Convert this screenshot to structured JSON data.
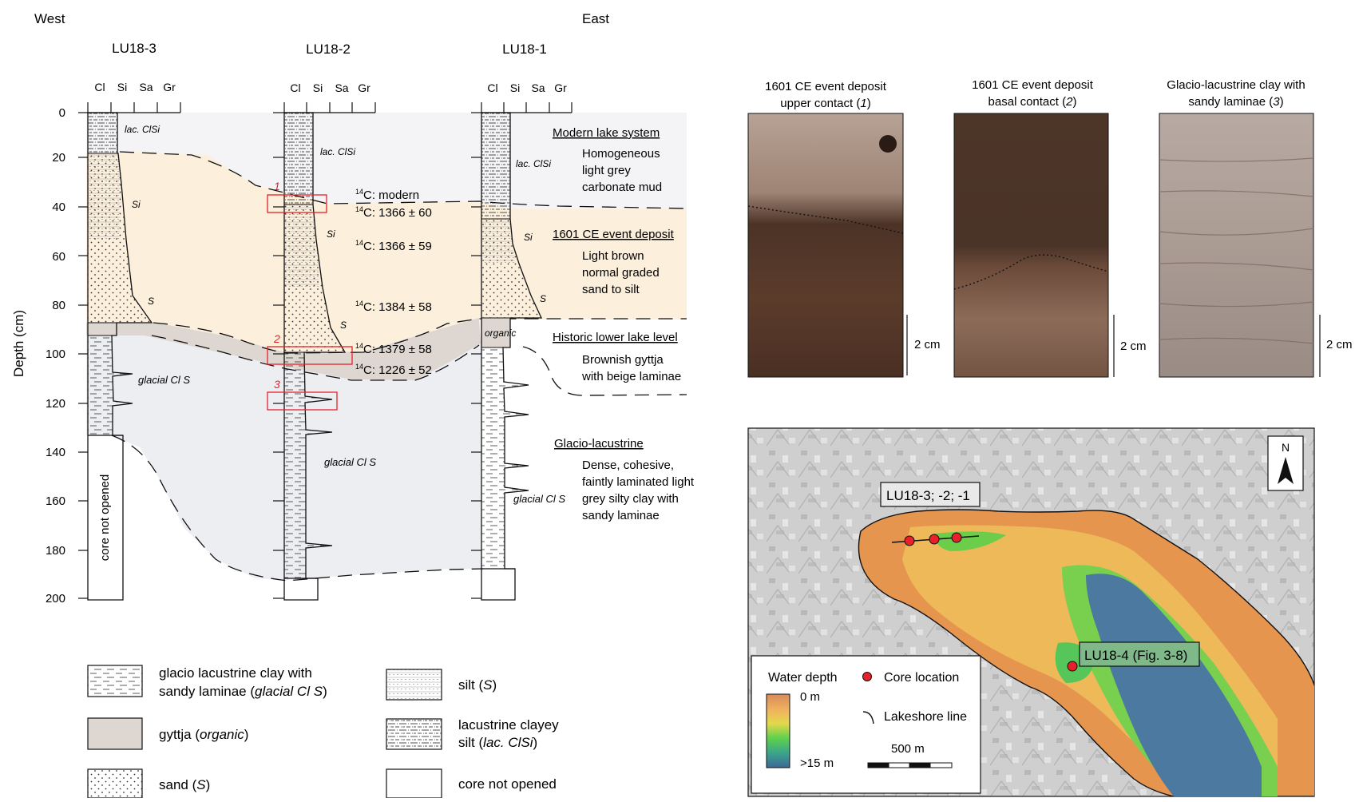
{
  "header": {
    "west": "West",
    "east": "East"
  },
  "cores": [
    "LU18-3",
    "LU18-2",
    "LU18-1"
  ],
  "grain_labels": [
    "Cl",
    "Si",
    "Sa",
    "Gr"
  ],
  "axis": {
    "label": "Depth (cm)",
    "ticks": [
      "0",
      "20",
      "40",
      "60",
      "80",
      "100",
      "120",
      "140",
      "160",
      "180",
      "200"
    ]
  },
  "core_labels": {
    "lu183_lacclsi": "lac. ClSi",
    "lu183_si": "Si",
    "lu183_s": "S",
    "lu183_glacial": "glacial Cl S",
    "lu183_notopened": "core not opened",
    "lu182_lacclsi": "lac. ClSi",
    "lu182_si": "Si",
    "lu182_s": "S",
    "lu182_glacial": "glacial Cl S",
    "lu181_lacclsi": "lac. ClSi",
    "lu181_si": "Si",
    "lu181_s": "S",
    "lu181_organic": "organic",
    "lu181_glacial": "glacial Cl S"
  },
  "markers": [
    "1",
    "2",
    "3"
  ],
  "c14": {
    "prefix": "14",
    "items": [
      "C: modern",
      "C: 1366 ± 60",
      "C: 1366 ± 59",
      "C: 1384 ± 58",
      "C: 1379 ± 58",
      "C: 1226 ± 52"
    ]
  },
  "units": {
    "modern": {
      "title": "Modern lake system",
      "lines": [
        "Homogeneous",
        "light grey",
        "carbonate mud"
      ]
    },
    "event": {
      "title": "1601 CE event deposit",
      "lines": [
        "Light brown",
        "normal graded",
        "sand to silt"
      ]
    },
    "historic": {
      "title": "Historic lower lake level",
      "lines": [
        "Brownish gyttja",
        "with beige laminae"
      ]
    },
    "glacio": {
      "title": "Glacio-lacustrine",
      "lines": [
        "Dense, cohesive,",
        "faintly laminated light",
        "grey silty clay with",
        "sandy laminae"
      ]
    }
  },
  "legend": {
    "glacial_1": "glacio lacustrine  clay with",
    "glacial_2_pre": "sandy laminae (",
    "glacial_2_it": "glacial Cl S",
    "glacial_2_post": ")",
    "gyttja_pre": "gyttja (",
    "gyttja_it": "organic",
    "gyttja_post": ")",
    "sand_pre": "sand (",
    "sand_it": "S",
    "sand_post": ")",
    "silt_pre": "silt (",
    "silt_it": "S",
    "silt_post": ")",
    "lacus_1": "lacustrine clayey",
    "lacus_2_pre": "silt (",
    "lacus_2_it": "lac. ClSi",
    "lacus_2_post": ")",
    "notopened": "core not opened"
  },
  "photos": {
    "p1": {
      "line1": "1601 CE event deposit",
      "line2_pre": "upper contact (",
      "line2_it": "1",
      "line2_post": ")"
    },
    "p2": {
      "line1": "1601 CE event deposit",
      "line2_pre": "basal contact (",
      "line2_it": "2",
      "line2_post": ")"
    },
    "p3": {
      "line1": "Glacio-lacustrine clay with",
      "line2_pre": "sandy laminae (",
      "line2_it": "3",
      "line2_post": ")"
    },
    "scale": "2 cm"
  },
  "map": {
    "north": "N",
    "label_west": "LU18-3; -2; -1",
    "label_lu184": "LU18-4 (Fig. 3-8)",
    "legend_title": "Water depth",
    "depth_top": "0 m",
    "depth_bottom": ">15 m",
    "core_location": "Core location",
    "lakeshore": "Lakeshore line",
    "scalebar": "500 m"
  },
  "colors": {
    "event_sand": "#fcefdc",
    "gyttja": "#ddd6d1",
    "glacial": "#edeef2",
    "modern": "#f4f4f6",
    "marker": "#e8202a"
  }
}
